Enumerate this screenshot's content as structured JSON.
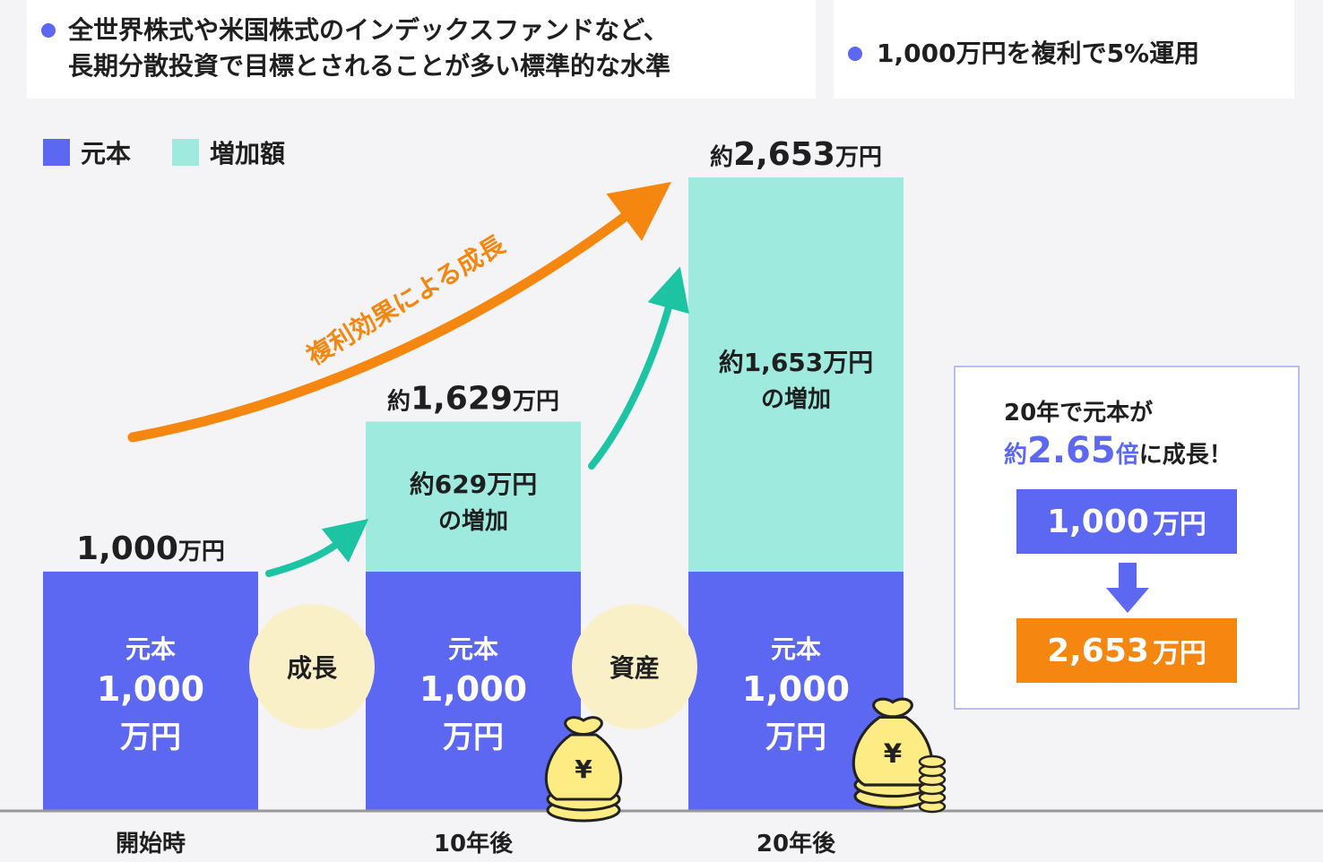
{
  "notes": {
    "left_line1": "全世界株式や米国株式のインデックスファンドなど、",
    "left_line2": "長期分散投資で目標とされることが多い標準的な水準",
    "right": "1,000万円を複利で5%運用"
  },
  "legend": {
    "principal": "元本",
    "increase": "増加額"
  },
  "colors": {
    "principal": "#5c67f2",
    "increase": "#9eeade",
    "orange": "#f5860f",
    "teal": "#1cc4a4",
    "circle": "#faf0c8",
    "coin": "#fdec83"
  },
  "chart_data": {
    "type": "bar",
    "stacked": true,
    "categories": [
      "開始時",
      "10年後",
      "20年後"
    ],
    "series": [
      {
        "name": "元本",
        "values": [
          1000,
          1000,
          1000
        ]
      },
      {
        "name": "増加額",
        "values": [
          0,
          629,
          1653
        ]
      }
    ],
    "unit": "万円",
    "ylim": [
      0,
      2653
    ],
    "total_labels": [
      {
        "prefix": "",
        "value": "1,000",
        "unit": "万円"
      },
      {
        "prefix": "約",
        "value": "1,629",
        "unit": "万円"
      },
      {
        "prefix": "約",
        "value": "2,653",
        "unit": "万円"
      }
    ],
    "increase_labels": [
      null,
      {
        "line1": "約629万円",
        "line2": "の増加"
      },
      {
        "line1": "約1,653万円",
        "line2": "の増加"
      }
    ],
    "principal_label": {
      "line1": "元本",
      "line2": "1,000",
      "line3": "万円"
    },
    "between_labels": [
      "成長",
      "資産"
    ],
    "arrow_label": "複利効果による成長",
    "coin_symbol": "¥"
  },
  "summary": {
    "line1": "20年で元本が",
    "prefix": "約",
    "multiple": "2.65",
    "suffix_unit": "倍",
    "suffix": "に成長！",
    "from_value": "1,000",
    "to_value": "2,653",
    "unit": "万円"
  }
}
